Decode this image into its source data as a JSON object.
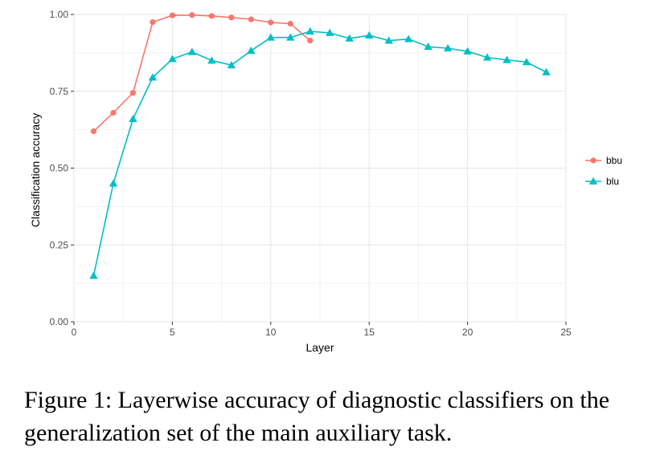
{
  "chart_data": {
    "type": "line",
    "xlabel": "Layer",
    "ylabel": "Classification accuracy",
    "xlim": [
      0,
      25
    ],
    "ylim": [
      0,
      1.0
    ],
    "x_ticks": [
      "0",
      "5",
      "10",
      "15",
      "20",
      "25"
    ],
    "y_ticks": [
      "0.00",
      "0.25",
      "0.50",
      "0.75",
      "1.00"
    ],
    "grid": true,
    "legend_position": "right",
    "series": [
      {
        "name": "bbu",
        "color": "#F8766D",
        "marker": "circle",
        "x": [
          1,
          2,
          3,
          4,
          5,
          6,
          7,
          8,
          9,
          10,
          11,
          12
        ],
        "y": [
          0.62,
          0.68,
          0.745,
          0.975,
          0.997,
          0.998,
          0.995,
          0.99,
          0.984,
          0.974,
          0.97,
          0.915
        ]
      },
      {
        "name": "blu",
        "color": "#00BFC4",
        "marker": "triangle",
        "x": [
          1,
          2,
          3,
          4,
          5,
          6,
          7,
          8,
          9,
          10,
          11,
          12,
          13,
          14,
          15,
          16,
          17,
          18,
          19,
          20,
          21,
          22,
          23,
          24
        ],
        "y": [
          0.15,
          0.45,
          0.66,
          0.795,
          0.855,
          0.878,
          0.85,
          0.835,
          0.882,
          0.925,
          0.925,
          0.945,
          0.94,
          0.922,
          0.932,
          0.915,
          0.92,
          0.895,
          0.89,
          0.88,
          0.86,
          0.852,
          0.845,
          0.812
        ]
      }
    ]
  },
  "caption": "Figure 1: Layerwise accuracy of diagnostic classifiers on the generalization set of the main auxiliary task."
}
